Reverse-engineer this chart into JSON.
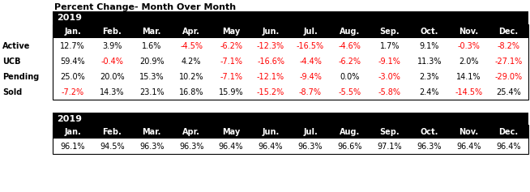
{
  "title": "Percent Change- Month Over Month",
  "year": "2019",
  "months": [
    "Jan.",
    "Feb.",
    "Mar.",
    "Apr.",
    "May",
    "Jun.",
    "Jul.",
    "Aug.",
    "Sep.",
    "Oct.",
    "Nov.",
    "Dec."
  ],
  "rows": {
    "Active": [
      "12.7%",
      "3.9%",
      "1.6%",
      "-4.5%",
      "-6.2%",
      "-12.3%",
      "-16.5%",
      "-4.6%",
      "1.7%",
      "9.1%",
      "-0.3%",
      "-8.2%"
    ],
    "UCB": [
      "59.4%",
      "-0.4%",
      "20.9%",
      "4.2%",
      "-7.1%",
      "-16.6%",
      "-4.4%",
      "-6.2%",
      "-9.1%",
      "11.3%",
      "2.0%",
      "-27.1%"
    ],
    "Pending": [
      "25.0%",
      "20.0%",
      "15.3%",
      "10.2%",
      "-7.1%",
      "-12.1%",
      "-9.4%",
      "0.0%",
      "-3.0%",
      "2.3%",
      "14.1%",
      "-29.0%"
    ],
    "Sold": [
      "-7.2%",
      "14.3%",
      "23.1%",
      "16.8%",
      "15.9%",
      "-15.2%",
      "-8.7%",
      "-5.5%",
      "-5.8%",
      "2.4%",
      "-14.5%",
      "25.4%"
    ]
  },
  "row_order": [
    "Active",
    "UCB",
    "Pending",
    "Sold"
  ],
  "bottom_row": [
    "96.1%",
    "94.5%",
    "96.3%",
    "96.3%",
    "96.4%",
    "96.4%",
    "96.3%",
    "96.6%",
    "97.1%",
    "96.3%",
    "96.4%",
    "96.4%"
  ],
  "header_bg": "#000000",
  "header_fg": "#ffffff",
  "neg_color": "#ff0000",
  "pos_color": "#000000",
  "font_size": 7.0,
  "title_font_size": 8.0,
  "header_font_size": 8.0
}
